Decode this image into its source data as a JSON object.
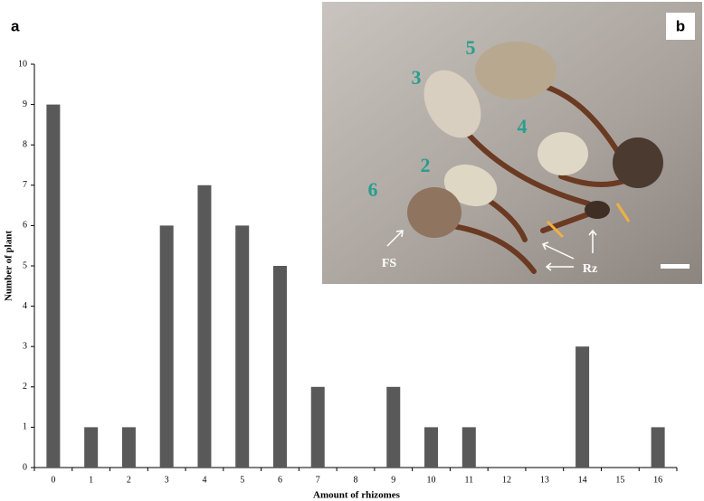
{
  "chart_data": {
    "type": "bar",
    "panel_labels": [
      "a",
      "b"
    ],
    "x_label": "Amount  of rhizomes",
    "y_label": "Number  of plant",
    "categories": [
      "0",
      "1",
      "2",
      "3",
      "4",
      "5",
      "6",
      "7",
      "8",
      "9",
      "10",
      "11",
      "12",
      "13",
      "14",
      "15",
      "16"
    ],
    "values": [
      9,
      1,
      1,
      6,
      7,
      6,
      5,
      2,
      0,
      2,
      1,
      1,
      0,
      0,
      3,
      0,
      1
    ],
    "color": "#595959",
    "ylim": [
      0,
      10
    ],
    "yticks": [
      0,
      1,
      2,
      3,
      4,
      5,
      6,
      7,
      8,
      9,
      10
    ],
    "photo_labels": [
      "6",
      "2",
      "3",
      "5",
      "4",
      "FS",
      "Rz"
    ]
  }
}
